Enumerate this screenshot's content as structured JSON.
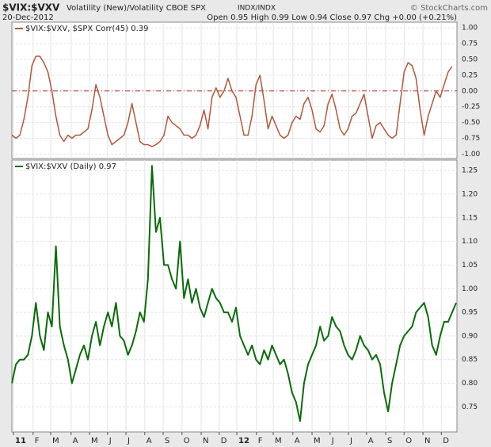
{
  "header": {
    "symbol": "$VIX:$VXV",
    "name": "Volatility (New)/Volatility CBOE SPX",
    "exchange": "INDX/INDX",
    "brand": "© StockCharts.com",
    "date": "20-Dec-2012",
    "quote": "Open 0.95 High 0.99 Low 0.94 Close 0.97 Chg +0.00 (+0.21%)"
  },
  "chart_data": [
    {
      "type": "line",
      "legend": "$VIX:$VXV, $SPX Corr(45) 0.39",
      "color": "#b0583c",
      "ylim": [
        -1.07,
        1.09
      ],
      "zero_line": 0,
      "zero_color": "#b03020",
      "yticks": [
        {
          "value": 1,
          "label": "1.00"
        },
        0.75,
        {
          "value": 0.5,
          "label": "0.50"
        },
        0.25,
        {
          "value": 0,
          "label": "0.00"
        },
        -0.25,
        {
          "value": -0.5,
          "label": "-0.50"
        },
        -0.75,
        {
          "value": -1,
          "label": "-1.00"
        }
      ],
      "values": [
        -0.7,
        -0.75,
        -0.7,
        -0.45,
        -0.1,
        0.4,
        0.55,
        0.55,
        0.45,
        0.3,
        0,
        -0.4,
        -0.7,
        -0.8,
        -0.7,
        -0.75,
        -0.7,
        -0.7,
        -0.65,
        -0.6,
        -0.3,
        0.1,
        -0.1,
        -0.4,
        -0.7,
        -0.85,
        -0.8,
        -0.75,
        -0.7,
        -0.5,
        -0.2,
        -0.5,
        -0.8,
        -0.85,
        -0.85,
        -0.88,
        -0.85,
        -0.8,
        -0.7,
        -0.4,
        -0.5,
        -0.55,
        -0.6,
        -0.7,
        -0.7,
        -0.75,
        -0.7,
        -0.55,
        -0.3,
        -0.6,
        -0.1,
        0.05,
        -0.1,
        0,
        0.2,
        0,
        -0.1,
        -0.4,
        -0.7,
        -0.7,
        -0.4,
        0.1,
        0.25,
        -0.15,
        -0.6,
        -0.4,
        -0.55,
        -0.7,
        -0.75,
        -0.7,
        -0.5,
        -0.4,
        -0.45,
        -0.2,
        -0.1,
        -0.3,
        -0.6,
        -0.65,
        -0.55,
        -0.2,
        -0.05,
        -0.3,
        -0.6,
        -0.7,
        -0.6,
        -0.4,
        -0.35,
        -0.2,
        -0.05,
        -0.4,
        -0.75,
        -0.55,
        -0.5,
        -0.6,
        -0.7,
        -0.75,
        -0.7,
        -0.2,
        0.3,
        0.45,
        0.4,
        0.2,
        -0.3,
        -0.7,
        -0.4,
        -0.2,
        0,
        -0.1,
        0.1,
        0.3,
        0.39
      ]
    },
    {
      "type": "line",
      "legend": "$VIX:$VXV (Daily) 0.97",
      "color": "#0b6b0b",
      "ylim": [
        0.697,
        1.272
      ],
      "yticks": [
        1.25,
        {
          "value": 1.2,
          "label": "1.20"
        },
        1.15,
        {
          "value": 1.1,
          "label": "1.10"
        },
        1.05,
        {
          "value": 1,
          "label": "1.00"
        },
        0.95,
        {
          "value": 0.9,
          "label": "0.90"
        },
        0.85,
        {
          "value": 0.8,
          "label": "0.80"
        },
        0.75
      ],
      "xlim": [
        0,
        111.2
      ],
      "xticks": [
        {
          "value": 0.4,
          "label": "11"
        },
        {
          "value": 5.3,
          "label": "F"
        },
        {
          "value": 9.7,
          "label": "M"
        },
        {
          "value": 14.8,
          "label": "A"
        },
        {
          "value": 19.4,
          "label": "M"
        },
        {
          "value": 23.9,
          "label": "J"
        },
        {
          "value": 28.5,
          "label": "J"
        },
        {
          "value": 33.2,
          "label": "A"
        },
        {
          "value": 37.8,
          "label": "S"
        },
        {
          "value": 42.5,
          "label": "O"
        },
        {
          "value": 47.3,
          "label": "N"
        },
        {
          "value": 51.8,
          "label": "D"
        },
        {
          "value": 56.2,
          "label": "12"
        },
        {
          "value": 61.1,
          "label": "F"
        },
        {
          "value": 65.3,
          "label": "M"
        },
        {
          "value": 70.2,
          "label": "A"
        },
        {
          "value": 75,
          "label": "M"
        },
        {
          "value": 79.5,
          "label": "J"
        },
        {
          "value": 84.1,
          "label": "J"
        },
        {
          "value": 88.6,
          "label": "A"
        },
        {
          "value": 93.4,
          "label": "S"
        },
        {
          "value": 98,
          "label": "O"
        },
        {
          "value": 102.7,
          "label": "N"
        },
        {
          "value": 107.3,
          "label": "D"
        }
      ],
      "values": [
        0.8,
        0.84,
        0.85,
        0.85,
        0.86,
        0.9,
        0.97,
        0.9,
        0.87,
        0.95,
        0.92,
        1.09,
        0.92,
        0.88,
        0.85,
        0.8,
        0.83,
        0.86,
        0.88,
        0.85,
        0.9,
        0.93,
        0.88,
        0.92,
        0.95,
        0.92,
        0.97,
        0.9,
        0.89,
        0.86,
        0.88,
        0.91,
        0.95,
        0.93,
        1.02,
        1.26,
        1.12,
        1.15,
        1.05,
        1.05,
        1.02,
        1,
        1.1,
        0.98,
        1.02,
        0.97,
        1,
        0.96,
        0.94,
        0.97,
        1,
        0.98,
        0.97,
        0.95,
        0.95,
        0.93,
        0.96,
        0.9,
        0.88,
        0.86,
        0.88,
        0.85,
        0.84,
        0.87,
        0.85,
        0.88,
        0.86,
        0.84,
        0.85,
        0.82,
        0.78,
        0.76,
        0.72,
        0.8,
        0.84,
        0.86,
        0.88,
        0.92,
        0.89,
        0.9,
        0.94,
        0.92,
        0.91,
        0.88,
        0.86,
        0.85,
        0.87,
        0.9,
        0.88,
        0.87,
        0.85,
        0.86,
        0.84,
        0.78,
        0.74,
        0.8,
        0.84,
        0.88,
        0.9,
        0.91,
        0.92,
        0.95,
        0.96,
        0.97,
        0.94,
        0.88,
        0.86,
        0.9,
        0.93,
        0.93,
        0.95,
        0.97
      ]
    }
  ]
}
